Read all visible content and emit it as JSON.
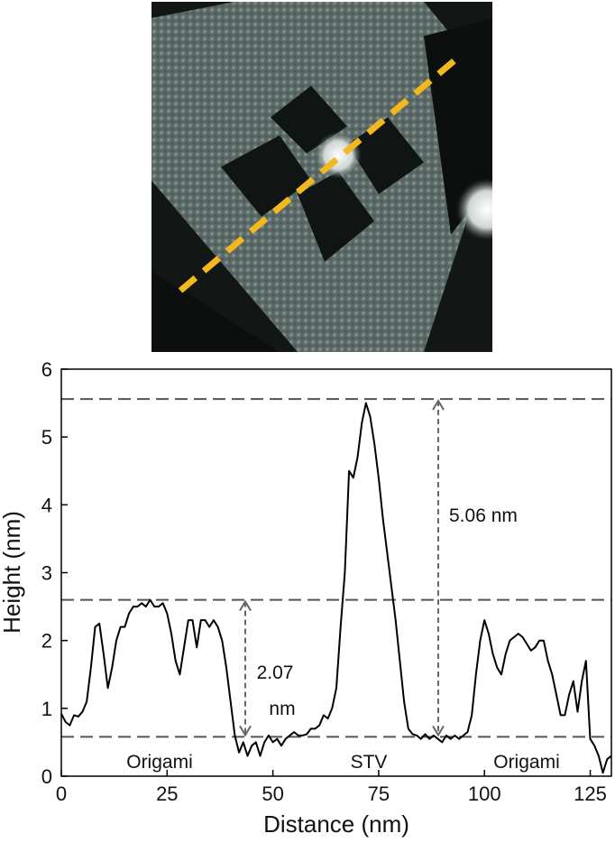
{
  "chart_data": {
    "type": "line",
    "x_label": "Distance (nm)",
    "y_label": "Height (nm)",
    "xlim": [
      0,
      130
    ],
    "ylim": [
      0,
      6
    ],
    "xticks": [
      0,
      25,
      50,
      75,
      100,
      125
    ],
    "yticks": [
      0,
      1,
      2,
      3,
      4,
      5,
      6
    ],
    "reference_lines": [
      5.56,
      2.6,
      0.58
    ],
    "annotations": [
      "5.06 nm",
      "2.07",
      "nm"
    ],
    "region_labels": [
      "Origami",
      "STV",
      "Origami"
    ],
    "x": [
      0,
      1,
      2,
      3,
      4,
      5,
      6,
      7,
      8,
      9,
      10,
      11,
      12,
      13,
      14,
      15,
      16,
      17,
      18,
      19,
      20,
      21,
      22,
      23,
      24,
      25,
      26,
      27,
      28,
      29,
      30,
      31,
      32,
      33,
      34,
      35,
      36,
      37,
      38,
      39,
      40,
      41,
      42,
      43,
      44,
      45,
      46,
      47,
      48,
      49,
      50,
      51,
      52,
      53,
      54,
      55,
      56,
      57,
      58,
      59,
      60,
      61,
      62,
      63,
      64,
      65,
      66,
      67,
      68,
      69,
      70,
      71,
      72,
      73,
      74,
      75,
      76,
      77,
      78,
      79,
      80,
      81,
      82,
      83,
      84,
      85,
      86,
      87,
      88,
      89,
      90,
      91,
      92,
      93,
      94,
      95,
      96,
      97,
      98,
      99,
      100,
      101,
      102,
      103,
      104,
      105,
      106,
      107,
      108,
      109,
      110,
      111,
      112,
      113,
      114,
      115,
      116,
      117,
      118,
      119,
      120,
      121,
      122,
      123,
      124,
      125,
      126,
      127,
      128,
      129,
      130
    ],
    "series": [
      {
        "color": "#000000",
        "values": [
          0.92,
          0.8,
          0.75,
          0.9,
          0.88,
          0.95,
          1.1,
          1.6,
          2.2,
          2.25,
          1.8,
          1.3,
          1.6,
          2.0,
          2.2,
          2.2,
          2.4,
          2.5,
          2.5,
          2.55,
          2.5,
          2.6,
          2.5,
          2.5,
          2.55,
          2.4,
          2.1,
          1.7,
          1.5,
          1.9,
          2.3,
          2.3,
          1.9,
          2.3,
          2.3,
          2.2,
          2.3,
          2.2,
          2.0,
          1.6,
          1.1,
          0.6,
          0.35,
          0.5,
          0.3,
          0.45,
          0.5,
          0.3,
          0.5,
          0.6,
          0.5,
          0.55,
          0.45,
          0.55,
          0.6,
          0.65,
          0.6,
          0.6,
          0.62,
          0.7,
          0.7,
          0.75,
          0.9,
          0.85,
          1.0,
          1.3,
          2.2,
          3.0,
          4.5,
          4.4,
          4.7,
          5.2,
          5.5,
          5.3,
          4.9,
          4.4,
          3.8,
          3.3,
          2.8,
          2.3,
          1.7,
          1.1,
          0.7,
          0.62,
          0.6,
          0.55,
          0.62,
          0.55,
          0.6,
          0.55,
          0.5,
          0.6,
          0.55,
          0.6,
          0.55,
          0.6,
          0.65,
          0.9,
          1.5,
          2.0,
          2.3,
          2.1,
          1.8,
          1.6,
          1.5,
          1.8,
          2.0,
          2.05,
          2.1,
          2.05,
          1.95,
          1.85,
          1.9,
          2.0,
          2.0,
          1.7,
          1.5,
          1.2,
          0.9,
          0.9,
          1.2,
          1.4,
          0.95,
          1.4,
          1.7,
          0.55,
          0.45,
          0.3,
          0.05,
          0.25,
          0.3
        ]
      }
    ]
  }
}
